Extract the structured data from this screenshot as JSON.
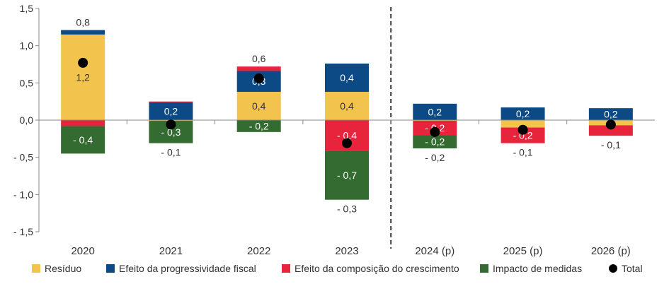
{
  "chart_data": {
    "type": "bar",
    "stacked": true,
    "title": "",
    "xlabel": "",
    "ylabel": "",
    "ylim": [
      -1.5,
      1.5
    ],
    "yticks": [
      "1,5",
      "1,0",
      "0,5",
      "0,0",
      "- 0,5",
      "- 1,0",
      "- 1,5"
    ],
    "ytick_values": [
      1.5,
      1.0,
      0.5,
      0.0,
      -0.5,
      -1.0,
      -1.5
    ],
    "categories": [
      "2020",
      "2021",
      "2022",
      "2023",
      "2024 (p)",
      "2025 (p)",
      "2026 (p)"
    ],
    "projection_divider_after": "2023",
    "legend_position": "bottom",
    "series": [
      {
        "name": "Resíduo",
        "color": "#F2C44E",
        "values": [
          1.15,
          -0.01,
          0.38,
          0.38,
          -0.01,
          -0.1,
          -0.07
        ],
        "labels": [
          "1,2",
          "",
          "0,4",
          "0,4",
          "",
          "",
          ""
        ]
      },
      {
        "name": "Efeito da progressividade fiscal",
        "color": "#0B4A84",
        "values": [
          0.06,
          0.24,
          0.28,
          0.38,
          0.22,
          0.17,
          0.16
        ],
        "labels": [
          "",
          "0,2",
          "0,3",
          "0,4",
          "0,2",
          "0,2",
          "0,2"
        ]
      },
      {
        "name": "Efeito da composição do crescimento",
        "color": "#E8233C",
        "values": [
          -0.08,
          0.01,
          0.06,
          -0.41,
          -0.19,
          -0.21,
          -0.14
        ],
        "labels": [
          "",
          "",
          "",
          "- 0,4",
          "- 0,2",
          "- 0,2",
          ""
        ]
      },
      {
        "name": "Impacto de medidas",
        "color": "#336B30",
        "values": [
          -0.37,
          -0.3,
          -0.16,
          -0.66,
          -0.18,
          0.0,
          0.0
        ],
        "labels": [
          "- 0,4",
          "- 0,3",
          "- 0,2",
          "- 0,7",
          "- 0,2",
          "",
          ""
        ]
      }
    ],
    "total": {
      "name": "Total",
      "color": "#000000",
      "values": [
        0.77,
        -0.06,
        0.56,
        -0.31,
        -0.16,
        -0.13,
        -0.06
      ],
      "labels": [
        "0,8",
        "- 0,1",
        "0,6",
        "- 0,3",
        "- 0,2",
        "- 0,1",
        "- 0,1"
      ]
    }
  }
}
